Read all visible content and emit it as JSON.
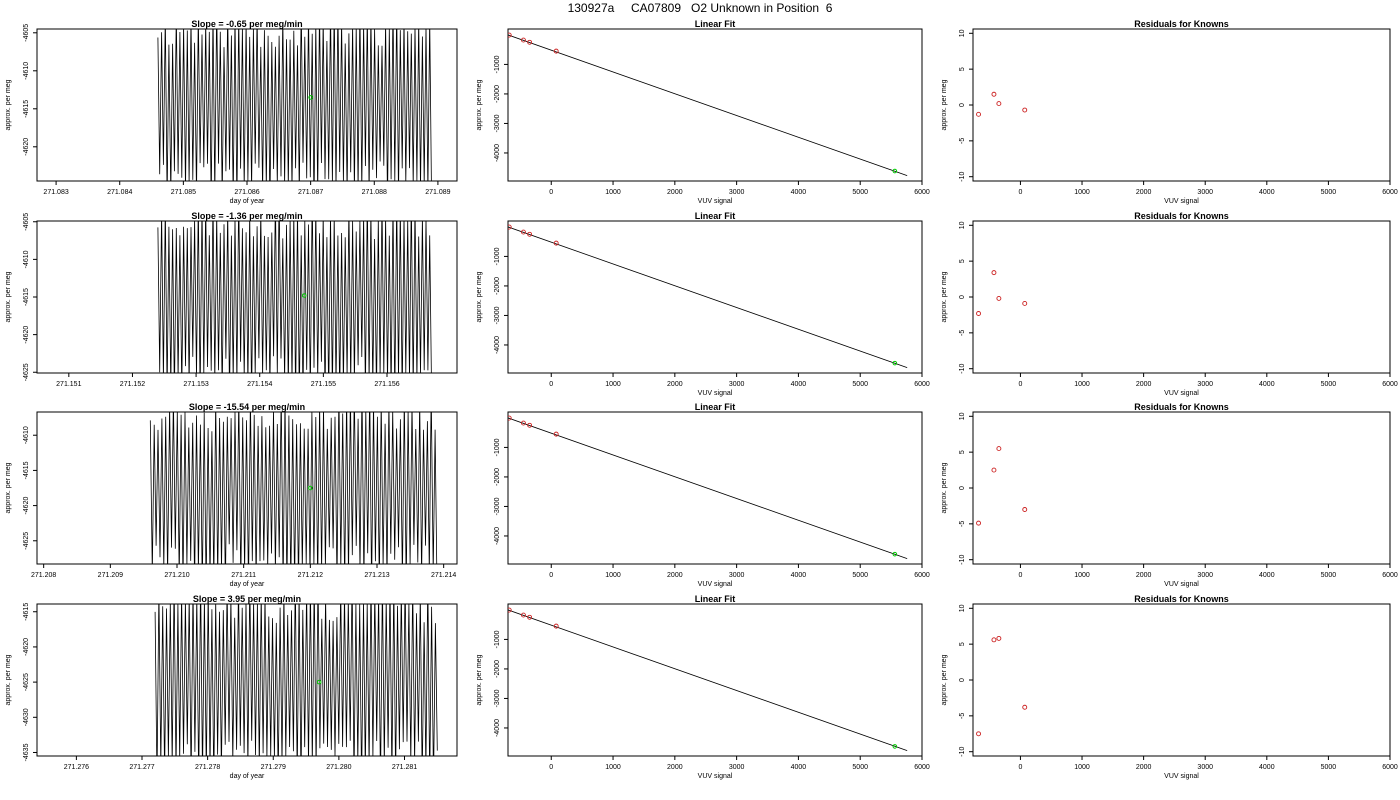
{
  "page": {
    "title": "130927a     CA07809   O2 Unknown in Position  6"
  },
  "colors": {
    "trace": "#000000",
    "unknown_point": "#00cc00",
    "known_point": "#cc2222",
    "axis": "#000000"
  },
  "chart_data": [
    {
      "type": "line",
      "panel": "row1-trace",
      "title": "Slope =  -0.65  per meg/min",
      "xlabel": "day of year",
      "ylabel": "approx. per meg",
      "xlim": [
        271.0827,
        271.0893
      ],
      "ylim": [
        -4624.5,
        -4604.5
      ],
      "xticks": [
        271.083,
        271.084,
        271.085,
        271.086,
        271.087,
        271.088,
        271.089
      ],
      "xtick_labels": [
        "271.083",
        "271.084",
        "271.085",
        "271.086",
        "271.087",
        "271.088",
        "271.089"
      ],
      "yticks": [
        -4605,
        -4610,
        -4615,
        -4620
      ],
      "ytick_labels": [
        "-4605",
        "-4610",
        "-4615",
        "-4620"
      ],
      "trace": {
        "x_start": 271.0846,
        "x_end": 271.0889,
        "points": 150,
        "y_low": -4628,
        "y_high": -4601,
        "seed": 11
      },
      "unknown_point": {
        "x": 271.087,
        "y": -4613.5
      }
    },
    {
      "type": "scatter",
      "panel": "row1-fit",
      "title": "Linear Fit",
      "xlabel": "VUV signal",
      "ylabel": "approx. per meg",
      "xlim": [
        -700,
        6000
      ],
      "ylim": [
        -4950,
        200
      ],
      "xticks": [
        0,
        1000,
        2000,
        3000,
        4000,
        5000,
        6000
      ],
      "xtick_labels": [
        "0",
        "1000",
        "2000",
        "3000",
        "4000",
        "5000",
        "6000"
      ],
      "yticks": [
        -1000,
        -2000,
        -3000,
        -4000
      ],
      "ytick_labels": [
        "-1000",
        "-2000",
        "-3000",
        "-4000"
      ],
      "fit_line": {
        "x": [
          -700,
          5760
        ],
        "y": [
          0,
          -4767
        ]
      },
      "known_points": {
        "x": [
          -680,
          -450,
          -350,
          80
        ],
        "y": [
          -6,
          -175,
          -250,
          -550
        ]
      },
      "unknown_point": {
        "x": 5560,
        "y": -4613
      }
    },
    {
      "type": "scatter",
      "panel": "row1-residuals",
      "title": "Residuals for Knowns",
      "xlabel": "VUV signal",
      "ylabel": "approx. per meg",
      "xlim": [
        -770,
        6000
      ],
      "ylim": [
        -10.6,
        10.6
      ],
      "xticks": [
        0,
        1000,
        2000,
        3000,
        4000,
        5000,
        6000
      ],
      "xtick_labels": [
        "0",
        "1000",
        "2000",
        "3000",
        "4000",
        "5000",
        "6000"
      ],
      "yticks": [
        10,
        5,
        0,
        -5,
        -10
      ],
      "ytick_labels": [
        "10",
        "5",
        "0",
        "-5",
        "-10"
      ],
      "points": {
        "x": [
          -680,
          -430,
          -350,
          70
        ],
        "y": [
          -1.3,
          1.5,
          0.2,
          -0.7
        ]
      }
    },
    {
      "type": "line",
      "panel": "row2-trace",
      "title": "Slope =  -1.36  per meg/min",
      "xlabel": "",
      "ylabel": "approx. per meg",
      "xlim": [
        271.1505,
        271.1571
      ],
      "ylim": [
        -4625.1,
        -4604.9
      ],
      "xticks": [
        271.151,
        271.152,
        271.153,
        271.154,
        271.155,
        271.156
      ],
      "xtick_labels": [
        "271.151",
        "271.152",
        "271.153",
        "271.154",
        "271.155",
        "271.156"
      ],
      "yticks": [
        -4605,
        -4610,
        -4615,
        -4620,
        -4625
      ],
      "ytick_labels": [
        "-4605",
        "-4610",
        "-4615",
        "-4620",
        "-4625"
      ],
      "trace": {
        "x_start": 271.1524,
        "x_end": 271.1567,
        "points": 150,
        "y_low": -4629,
        "y_high": -4601,
        "seed": 23
      },
      "unknown_point": {
        "x": 271.1547,
        "y": -4614.8
      }
    },
    {
      "type": "scatter",
      "panel": "row2-fit",
      "title": "Linear Fit",
      "xlabel": "VUV signal",
      "ylabel": "approx. per meg",
      "xlim": [
        -700,
        6000
      ],
      "ylim": [
        -4950,
        200
      ],
      "xticks": [
        0,
        1000,
        2000,
        3000,
        4000,
        5000,
        6000
      ],
      "xtick_labels": [
        "0",
        "1000",
        "2000",
        "3000",
        "4000",
        "5000",
        "6000"
      ],
      "yticks": [
        -1000,
        -2000,
        -3000,
        -4000
      ],
      "ytick_labels": [
        "-1000",
        "-2000",
        "-3000",
        "-4000"
      ],
      "fit_line": {
        "x": [
          -700,
          5760
        ],
        "y": [
          0,
          -4767
        ]
      },
      "known_points": {
        "x": [
          -680,
          -450,
          -350,
          80
        ],
        "y": [
          -6,
          -175,
          -250,
          -550
        ]
      },
      "unknown_point": {
        "x": 5560,
        "y": -4615
      }
    },
    {
      "type": "scatter",
      "panel": "row2-residuals",
      "title": "Residuals for Knowns",
      "xlabel": "VUV signal",
      "ylabel": "approx. per meg",
      "xlim": [
        -770,
        6000
      ],
      "ylim": [
        -10.6,
        10.6
      ],
      "xticks": [
        0,
        1000,
        2000,
        3000,
        4000,
        5000,
        6000
      ],
      "xtick_labels": [
        "0",
        "1000",
        "2000",
        "3000",
        "4000",
        "5000",
        "6000"
      ],
      "yticks": [
        10,
        5,
        0,
        -5,
        -10
      ],
      "ytick_labels": [
        "10",
        "5",
        "0",
        "-5",
        "-10"
      ],
      "points": {
        "x": [
          -680,
          -430,
          -350,
          70
        ],
        "y": [
          -2.3,
          3.4,
          -0.2,
          -0.9
        ]
      }
    },
    {
      "type": "line",
      "panel": "row3-trace",
      "title": "Slope =  -15.54  per meg/min",
      "xlabel": "day of year",
      "ylabel": "approx. per meg",
      "xlim": [
        271.2079,
        271.2142
      ],
      "ylim": [
        -4628.3,
        -4606.7
      ],
      "xticks": [
        271.208,
        271.209,
        271.21,
        271.211,
        271.212,
        271.213,
        271.214
      ],
      "xtick_labels": [
        "271.208",
        "271.209",
        "271.210",
        "271.211",
        "271.212",
        "271.213",
        "271.214"
      ],
      "yticks": [
        -4610,
        -4615,
        -4620,
        -4625
      ],
      "ytick_labels": [
        "-4610",
        "-4615",
        "-4620",
        "-4625"
      ],
      "trace": {
        "x_start": 271.2096,
        "x_end": 271.2139,
        "points": 150,
        "y_low": -4632,
        "y_high": -4603,
        "seed": 37
      },
      "unknown_point": {
        "x": 271.212,
        "y": -4617.5
      }
    },
    {
      "type": "scatter",
      "panel": "row3-fit",
      "title": "Linear Fit",
      "xlabel": "VUV signal",
      "ylabel": "",
      "xlim": [
        -700,
        6000
      ],
      "ylim": [
        -4950,
        200
      ],
      "xticks": [
        0,
        1000,
        2000,
        3000,
        4000,
        5000,
        6000
      ],
      "xtick_labels": [
        "0",
        "1000",
        "2000",
        "3000",
        "4000",
        "5000",
        "6000"
      ],
      "yticks": [
        -1000,
        -2000,
        -3000,
        -4000
      ],
      "ytick_labels": [
        "-1000",
        "-2000",
        "-3000",
        "-4000"
      ],
      "fit_line": {
        "x": [
          -700,
          5760
        ],
        "y": [
          0,
          -4767
        ]
      },
      "known_points": {
        "x": [
          -680,
          -450,
          -350,
          80
        ],
        "y": [
          -6,
          -175,
          -250,
          -550
        ]
      },
      "unknown_point": {
        "x": 5560,
        "y": -4617
      }
    },
    {
      "type": "scatter",
      "panel": "row3-residuals",
      "title": "Residuals for Knowns",
      "xlabel": "VUV signal",
      "ylabel": "approx. per meg",
      "xlim": [
        -770,
        6000
      ],
      "ylim": [
        -10.6,
        10.6
      ],
      "xticks": [
        0,
        1000,
        2000,
        3000,
        4000,
        5000,
        6000
      ],
      "xtick_labels": [
        "0",
        "1000",
        "2000",
        "3000",
        "4000",
        "5000",
        "6000"
      ],
      "yticks": [
        10,
        5,
        0,
        -5,
        -10
      ],
      "ytick_labels": [
        "10",
        "5",
        "0",
        "-5",
        "-10"
      ],
      "points": {
        "x": [
          -680,
          -430,
          -350,
          70
        ],
        "y": [
          -4.9,
          2.5,
          5.5,
          -3.0
        ]
      }
    },
    {
      "type": "line",
      "panel": "row4-trace",
      "title": "Slope =  3.95  per meg/min",
      "xlabel": "day of year",
      "ylabel": "approx. per meg",
      "xlim": [
        271.2754,
        271.2818
      ],
      "ylim": [
        -4635.5,
        -4613.9
      ],
      "xticks": [
        271.276,
        271.277,
        271.278,
        271.279,
        271.28,
        271.281
      ],
      "xtick_labels": [
        "271.276",
        "271.277",
        "271.278",
        "271.279",
        "271.280",
        "271.281"
      ],
      "yticks": [
        -4615,
        -4620,
        -4625,
        -4630,
        -4635
      ],
      "ytick_labels": [
        "-4615",
        "-4620",
        "-4625",
        "-4630",
        "-4635"
      ],
      "trace": {
        "x_start": 271.2772,
        "x_end": 271.2815,
        "points": 150,
        "y_low": -4640,
        "y_high": -4610,
        "seed": 51
      },
      "unknown_point": {
        "x": 271.2797,
        "y": -4625.0
      }
    },
    {
      "type": "scatter",
      "panel": "row4-fit",
      "title": "Linear Fit",
      "xlabel": "VUV signal",
      "ylabel": "approx. per meg",
      "xlim": [
        -700,
        6000
      ],
      "ylim": [
        -4950,
        200
      ],
      "xticks": [
        0,
        1000,
        2000,
        3000,
        4000,
        5000,
        6000
      ],
      "xtick_labels": [
        "0",
        "1000",
        "2000",
        "3000",
        "4000",
        "5000",
        "6000"
      ],
      "yticks": [
        -1000,
        -2000,
        -3000,
        -4000
      ],
      "ytick_labels": [
        "-1000",
        "-2000",
        "-3000",
        "-4000"
      ],
      "fit_line": {
        "x": [
          -700,
          5760
        ],
        "y": [
          0,
          -4767
        ]
      },
      "known_points": {
        "x": [
          -680,
          -450,
          -350,
          80
        ],
        "y": [
          -6,
          -175,
          -250,
          -550
        ]
      },
      "unknown_point": {
        "x": 5560,
        "y": -4625
      }
    },
    {
      "type": "scatter",
      "panel": "row4-residuals",
      "title": "Residuals for Knowns",
      "xlabel": "VUV signal",
      "ylabel": "approx. per meg",
      "xlim": [
        -770,
        6000
      ],
      "ylim": [
        -10.6,
        10.6
      ],
      "xticks": [
        0,
        1000,
        2000,
        3000,
        4000,
        5000,
        6000
      ],
      "xtick_labels": [
        "0",
        "1000",
        "2000",
        "3000",
        "4000",
        "5000",
        "6000"
      ],
      "yticks": [
        10,
        5,
        0,
        -5,
        -10
      ],
      "ytick_labels": [
        "10",
        "5",
        "0",
        "-5",
        "-10"
      ],
      "points": {
        "x": [
          -680,
          -430,
          -350,
          70
        ],
        "y": [
          -7.5,
          5.6,
          5.8,
          -3.8
        ]
      }
    }
  ]
}
